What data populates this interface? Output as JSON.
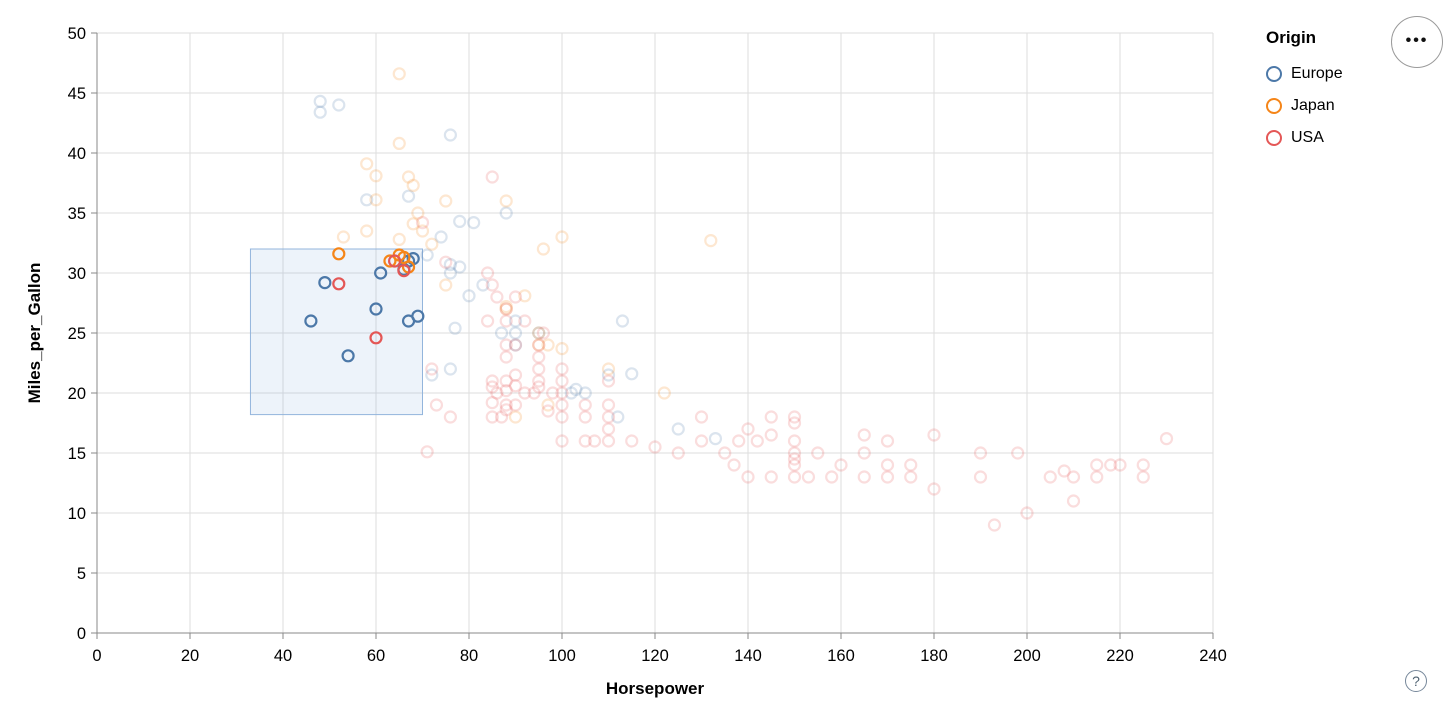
{
  "legend": {
    "title": "Origin",
    "items": [
      {
        "label": "Europe",
        "color": "#4c78a8"
      },
      {
        "label": "Japan",
        "color": "#f58518"
      },
      {
        "label": "USA",
        "color": "#e45756"
      }
    ]
  },
  "buttons": {
    "actions_glyph": "•••",
    "help_glyph": "?"
  },
  "chart_data": {
    "type": "scatter",
    "title": "",
    "xlabel": "Horsepower",
    "ylabel": "Miles_per_Gallon",
    "xlim": [
      0,
      240
    ],
    "ylim": [
      0,
      50
    ],
    "x_ticks": [
      0,
      20,
      40,
      60,
      80,
      100,
      120,
      140,
      160,
      180,
      200,
      220,
      240
    ],
    "y_ticks": [
      0,
      5,
      10,
      15,
      20,
      25,
      30,
      35,
      40,
      45,
      50
    ],
    "grid": true,
    "legend_position": "top-right",
    "point_style": {
      "shape": "open-circle",
      "radius": 5.5,
      "stroke_width": 2.2,
      "selected_opacity": 1,
      "unselected_opacity": 0.2
    },
    "brush": {
      "x": [
        33,
        70
      ],
      "y": [
        18.2,
        32.0
      ],
      "fill": "#6b9bd2",
      "fill_opacity": 0.12,
      "stroke": "#93b5dc"
    },
    "axis_style": {
      "grid_color": "#dddddd",
      "domain_color": "#888888",
      "tick_color": "#888888",
      "label_color": "#000000"
    },
    "series": [
      {
        "name": "Europe",
        "color": "#4c78a8",
        "points": [
          [
            46,
            26
          ],
          [
            49,
            29.2
          ],
          [
            54,
            23.1
          ],
          [
            60,
            27
          ],
          [
            61,
            30
          ],
          [
            66,
            30.3
          ],
          [
            67,
            31
          ],
          [
            68,
            31.2
          ],
          [
            67,
            26
          ],
          [
            69,
            26.4
          ],
          [
            48,
            43.4
          ],
          [
            48,
            44.3
          ],
          [
            52,
            44
          ],
          [
            76,
            41.5
          ],
          [
            58,
            36.1
          ],
          [
            67,
            36.4
          ],
          [
            71,
            31.5
          ],
          [
            74,
            33
          ],
          [
            78,
            34.3
          ],
          [
            81,
            34.2
          ],
          [
            88,
            35
          ],
          [
            76,
            30.7
          ],
          [
            78,
            30.5
          ],
          [
            80,
            28.1
          ],
          [
            77,
            25.4
          ],
          [
            83,
            29
          ],
          [
            76,
            30
          ],
          [
            90,
            26
          ],
          [
            90,
            24
          ],
          [
            95,
            25
          ],
          [
            87,
            25
          ],
          [
            90,
            25
          ],
          [
            113,
            26
          ],
          [
            112,
            18
          ],
          [
            103,
            20.3
          ],
          [
            110,
            21.5
          ],
          [
            115,
            21.6
          ],
          [
            125,
            17
          ],
          [
            133,
            16.2
          ],
          [
            105,
            20
          ],
          [
            102,
            20
          ],
          [
            76,
            22
          ],
          [
            72,
            21.5
          ]
        ]
      },
      {
        "name": "Japan",
        "color": "#f58518",
        "points": [
          [
            52,
            31.6
          ],
          [
            63,
            31
          ],
          [
            65,
            31.5
          ],
          [
            66,
            31.3
          ],
          [
            67,
            30.5
          ],
          [
            65,
            46.6
          ],
          [
            65,
            40.8
          ],
          [
            58,
            39.1
          ],
          [
            60,
            38.1
          ],
          [
            67,
            38
          ],
          [
            68,
            37.3
          ],
          [
            60,
            36.1
          ],
          [
            69,
            35
          ],
          [
            53,
            33
          ],
          [
            58,
            33.5
          ],
          [
            65,
            32.8
          ],
          [
            70,
            33.5
          ],
          [
            68,
            34.1
          ],
          [
            75,
            36
          ],
          [
            88,
            36
          ],
          [
            72,
            32.4
          ],
          [
            75,
            29
          ],
          [
            92,
            28.1
          ],
          [
            88,
            27
          ],
          [
            88,
            27.2
          ],
          [
            95,
            25
          ],
          [
            95,
            24
          ],
          [
            97,
            24
          ],
          [
            100,
            23.7
          ],
          [
            110,
            22
          ],
          [
            122,
            20
          ],
          [
            97,
            19
          ],
          [
            90,
            18
          ],
          [
            100,
            33
          ],
          [
            96,
            32
          ],
          [
            132,
            32.7
          ]
        ]
      },
      {
        "name": "USA",
        "color": "#e45756",
        "points": [
          [
            52,
            29.1
          ],
          [
            60,
            24.6
          ],
          [
            64,
            31
          ],
          [
            66,
            30.2
          ],
          [
            85,
            38
          ],
          [
            70,
            34.2
          ],
          [
            75,
            30.9
          ],
          [
            84,
            30
          ],
          [
            90,
            28
          ],
          [
            85,
            29
          ],
          [
            92,
            26
          ],
          [
            84,
            26
          ],
          [
            86,
            28
          ],
          [
            96,
            25
          ],
          [
            88,
            26
          ],
          [
            95,
            24
          ],
          [
            95,
            22
          ],
          [
            90,
            24
          ],
          [
            88,
            24
          ],
          [
            95,
            23
          ],
          [
            100,
            22
          ],
          [
            100,
            21
          ],
          [
            100,
            20
          ],
          [
            100,
            19
          ],
          [
            100,
            18
          ],
          [
            105,
            18
          ],
          [
            105,
            19
          ],
          [
            110,
            19
          ],
          [
            110,
            21
          ],
          [
            110,
            18
          ],
          [
            97,
            18.5
          ],
          [
            98,
            20
          ],
          [
            95,
            20.5
          ],
          [
            88,
            21
          ],
          [
            85,
            21
          ],
          [
            86,
            20
          ],
          [
            85,
            20.5
          ],
          [
            88,
            20.2
          ],
          [
            90,
            20.6
          ],
          [
            85,
            19.2
          ],
          [
            88,
            18.6
          ],
          [
            90,
            19
          ],
          [
            87,
            18
          ],
          [
            85,
            18
          ],
          [
            92,
            20
          ],
          [
            94,
            20
          ],
          [
            90,
            21.5
          ],
          [
            88,
            19
          ],
          [
            72,
            22
          ],
          [
            73,
            19
          ],
          [
            76,
            18
          ],
          [
            88,
            23
          ],
          [
            95,
            21
          ],
          [
            88,
            27
          ],
          [
            105,
            16
          ],
          [
            100,
            16
          ],
          [
            107,
            16
          ],
          [
            110,
            17
          ],
          [
            115,
            16
          ],
          [
            120,
            15.5
          ],
          [
            110,
            16
          ],
          [
            71,
            15.1
          ],
          [
            130,
            18
          ],
          [
            140,
            17
          ],
          [
            150,
            18
          ],
          [
            150,
            16
          ],
          [
            165,
            15
          ],
          [
            150,
            15
          ],
          [
            150,
            14.5
          ],
          [
            150,
            14
          ],
          [
            150,
            13
          ],
          [
            145,
            13
          ],
          [
            137,
            14
          ],
          [
            158,
            13
          ],
          [
            153,
            13
          ],
          [
            165,
            13
          ],
          [
            175,
            13
          ],
          [
            170,
            13
          ],
          [
            180,
            12
          ],
          [
            145,
            16.5
          ],
          [
            142,
            16
          ],
          [
            138,
            16
          ],
          [
            155,
            15
          ],
          [
            125,
            15
          ],
          [
            130,
            16
          ],
          [
            135,
            15
          ],
          [
            140,
            13
          ],
          [
            150,
            17.5
          ],
          [
            145,
            18
          ],
          [
            160,
            14
          ],
          [
            170,
            14
          ],
          [
            175,
            14
          ],
          [
            165,
            16.5
          ],
          [
            170,
            16
          ],
          [
            180,
            16.5
          ],
          [
            190,
            15
          ],
          [
            198,
            15
          ],
          [
            220,
            14
          ],
          [
            215,
            14
          ],
          [
            225,
            14
          ],
          [
            225,
            13
          ],
          [
            215,
            13
          ],
          [
            230,
            16.2
          ],
          [
            190,
            13
          ],
          [
            205,
            13
          ],
          [
            210,
            13
          ],
          [
            208,
            13.5
          ],
          [
            218,
            14
          ],
          [
            193,
            9
          ],
          [
            200,
            10
          ],
          [
            210,
            11
          ]
        ]
      }
    ]
  }
}
